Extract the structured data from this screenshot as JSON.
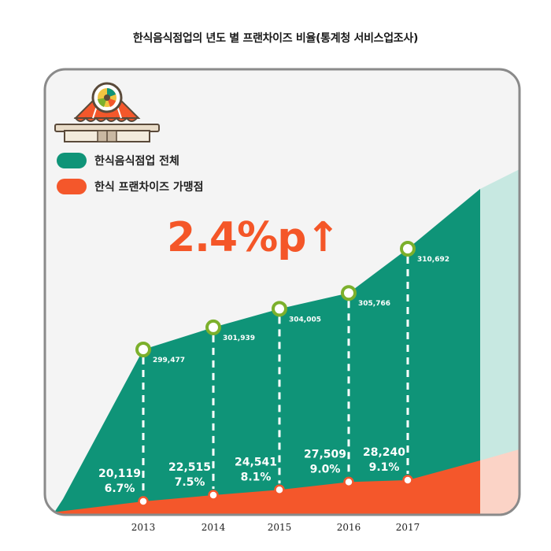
{
  "colors": {
    "panel_bg": "#f4f4f4",
    "panel_border": "#8a8a8a",
    "total_area": "#0f9478",
    "total_area_faded": "#c7e8e1",
    "franchise_area": "#f4572b",
    "franchise_area_faded": "#fbd3c6",
    "accent_green": "#7cb02c",
    "accent_orange": "#f45628"
  },
  "icon": "storefront-icon",
  "headline": "2.4%p↑",
  "chart_data": {
    "type": "area",
    "title": "한식음식점업의 년도 별 프랜차이즈 비율(통계청 서비스업조사)",
    "x": [
      "2013",
      "2014",
      "2015",
      "2016",
      "2017"
    ],
    "series": [
      {
        "name": "한식음식점업 전체",
        "color": "#0f9478",
        "values": [
          299477,
          301939,
          304005,
          305766,
          310692
        ],
        "labels": [
          "299,477",
          "301,939",
          "304,005",
          "305,766",
          "310,692"
        ]
      },
      {
        "name": "한식 프랜차이즈 가맹점",
        "color": "#f4572b",
        "values": [
          20119,
          22515,
          24541,
          27509,
          28240
        ],
        "labels": [
          "20,119",
          "22,515",
          "24,541",
          "27,509",
          "28,240"
        ],
        "shares": [
          "6.7%",
          "7.5%",
          "8.1%",
          "9.0%",
          "9.1%"
        ]
      }
    ],
    "legend_position": "top-left"
  }
}
